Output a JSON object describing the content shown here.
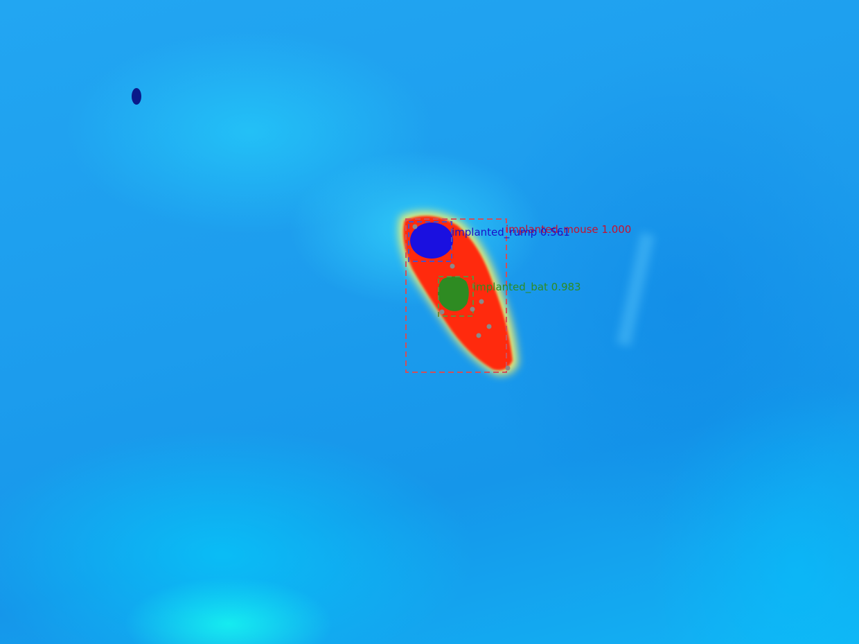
{
  "detections": [
    {
      "label": "implanted_mouse 1.000",
      "color": "#c8102e"
    },
    {
      "label": "implanted_rump 0.561",
      "color": "#1a10c8"
    },
    {
      "label": "implanted_bat 0.983",
      "color": "#2e8b22"
    }
  ],
  "colors": {
    "background": "#1ea0f0",
    "hot": "#ff2a10",
    "warm": "#ffe040",
    "box": "#d0505a",
    "keypoint": "#888888"
  }
}
